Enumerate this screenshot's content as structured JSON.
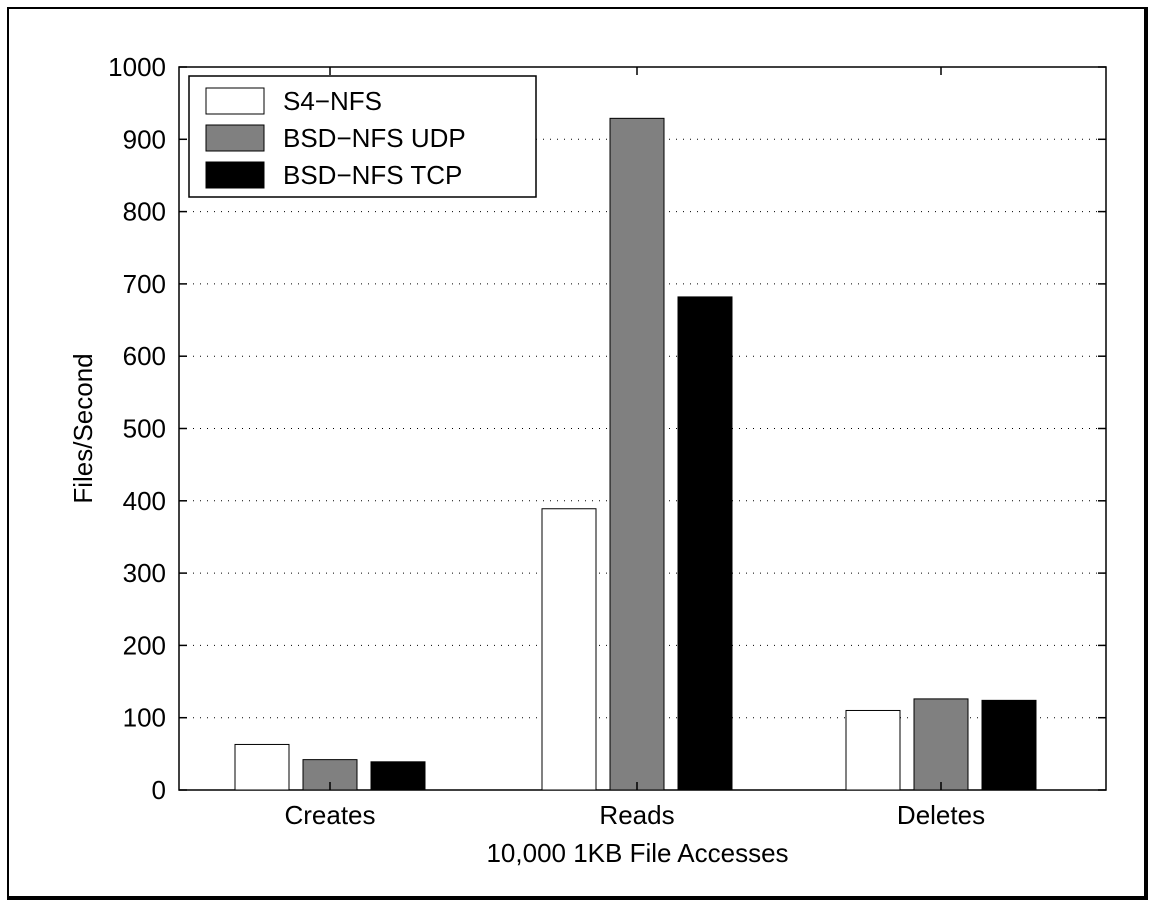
{
  "chart_data": {
    "type": "bar",
    "categories": [
      "Creates",
      "Reads",
      "Deletes"
    ],
    "series": [
      {
        "name": "S4−NFS",
        "values": [
          63,
          389,
          110
        ],
        "color": "#ffffff"
      },
      {
        "name": "BSD−NFS UDP",
        "values": [
          42,
          929,
          126
        ],
        "color": "#808080"
      },
      {
        "name": "BSD−NFS TCP",
        "values": [
          39,
          682,
          124
        ],
        "color": "#000000"
      }
    ],
    "title": "",
    "xlabel": "10,000 1KB File Accesses",
    "ylabel": "Files/Second",
    "ylim": [
      0,
      1000
    ],
    "yticks": [
      0,
      100,
      200,
      300,
      400,
      500,
      600,
      700,
      800,
      900,
      1000
    ],
    "grid": "dotted horizontal",
    "legend_position": "top-left"
  }
}
